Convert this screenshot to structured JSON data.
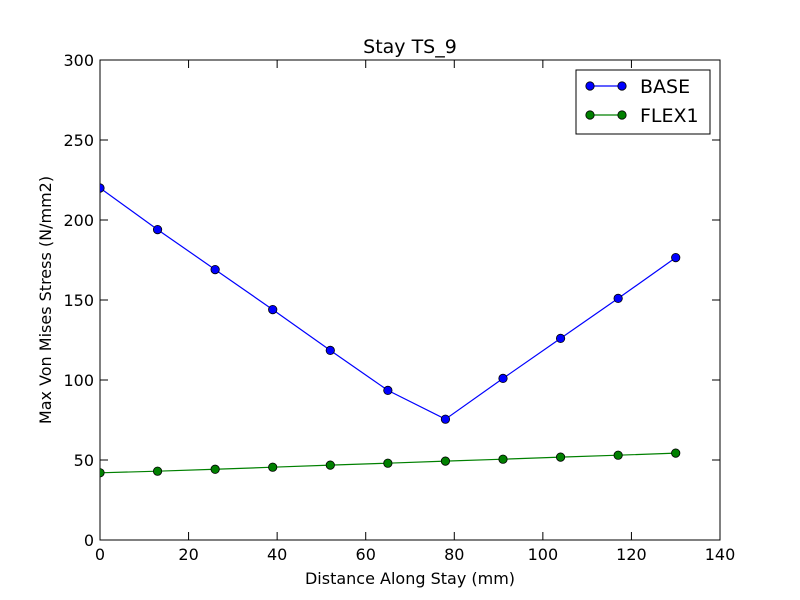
{
  "chart_data": {
    "type": "line",
    "title": "Stay TS_9",
    "xlabel": "Distance Along Stay (mm)",
    "ylabel": "Max Von Mises Stress (N/mm2)",
    "xlim": [
      0,
      140
    ],
    "ylim": [
      0,
      300
    ],
    "xticks": [
      0,
      20,
      40,
      60,
      80,
      100,
      120,
      140
    ],
    "yticks": [
      0,
      50,
      100,
      150,
      200,
      250,
      300
    ],
    "xtick_labels": [
      "0",
      "20",
      "40",
      "60",
      "80",
      "100",
      "120",
      "140"
    ],
    "ytick_labels": [
      "0",
      "50",
      "100",
      "150",
      "200",
      "250",
      "300"
    ],
    "grid": false,
    "legend_position": "top-right",
    "series": [
      {
        "name": "BASE",
        "color": "#0000ff",
        "marker": "circle",
        "x": [
          0,
          13,
          26,
          39,
          52,
          65,
          78,
          91,
          104,
          117,
          130
        ],
        "y": [
          220,
          194,
          169,
          144,
          118.5,
          93.5,
          75.5,
          101,
          126,
          151,
          176.5
        ]
      },
      {
        "name": "FLEX1",
        "color": "#008000",
        "marker": "circle",
        "x": [
          0,
          13,
          26,
          39,
          52,
          65,
          78,
          91,
          104,
          117,
          130
        ],
        "y": [
          42,
          43,
          44.2,
          45.5,
          46.8,
          48,
          49.3,
          50.5,
          51.8,
          53,
          54.3
        ]
      }
    ]
  }
}
